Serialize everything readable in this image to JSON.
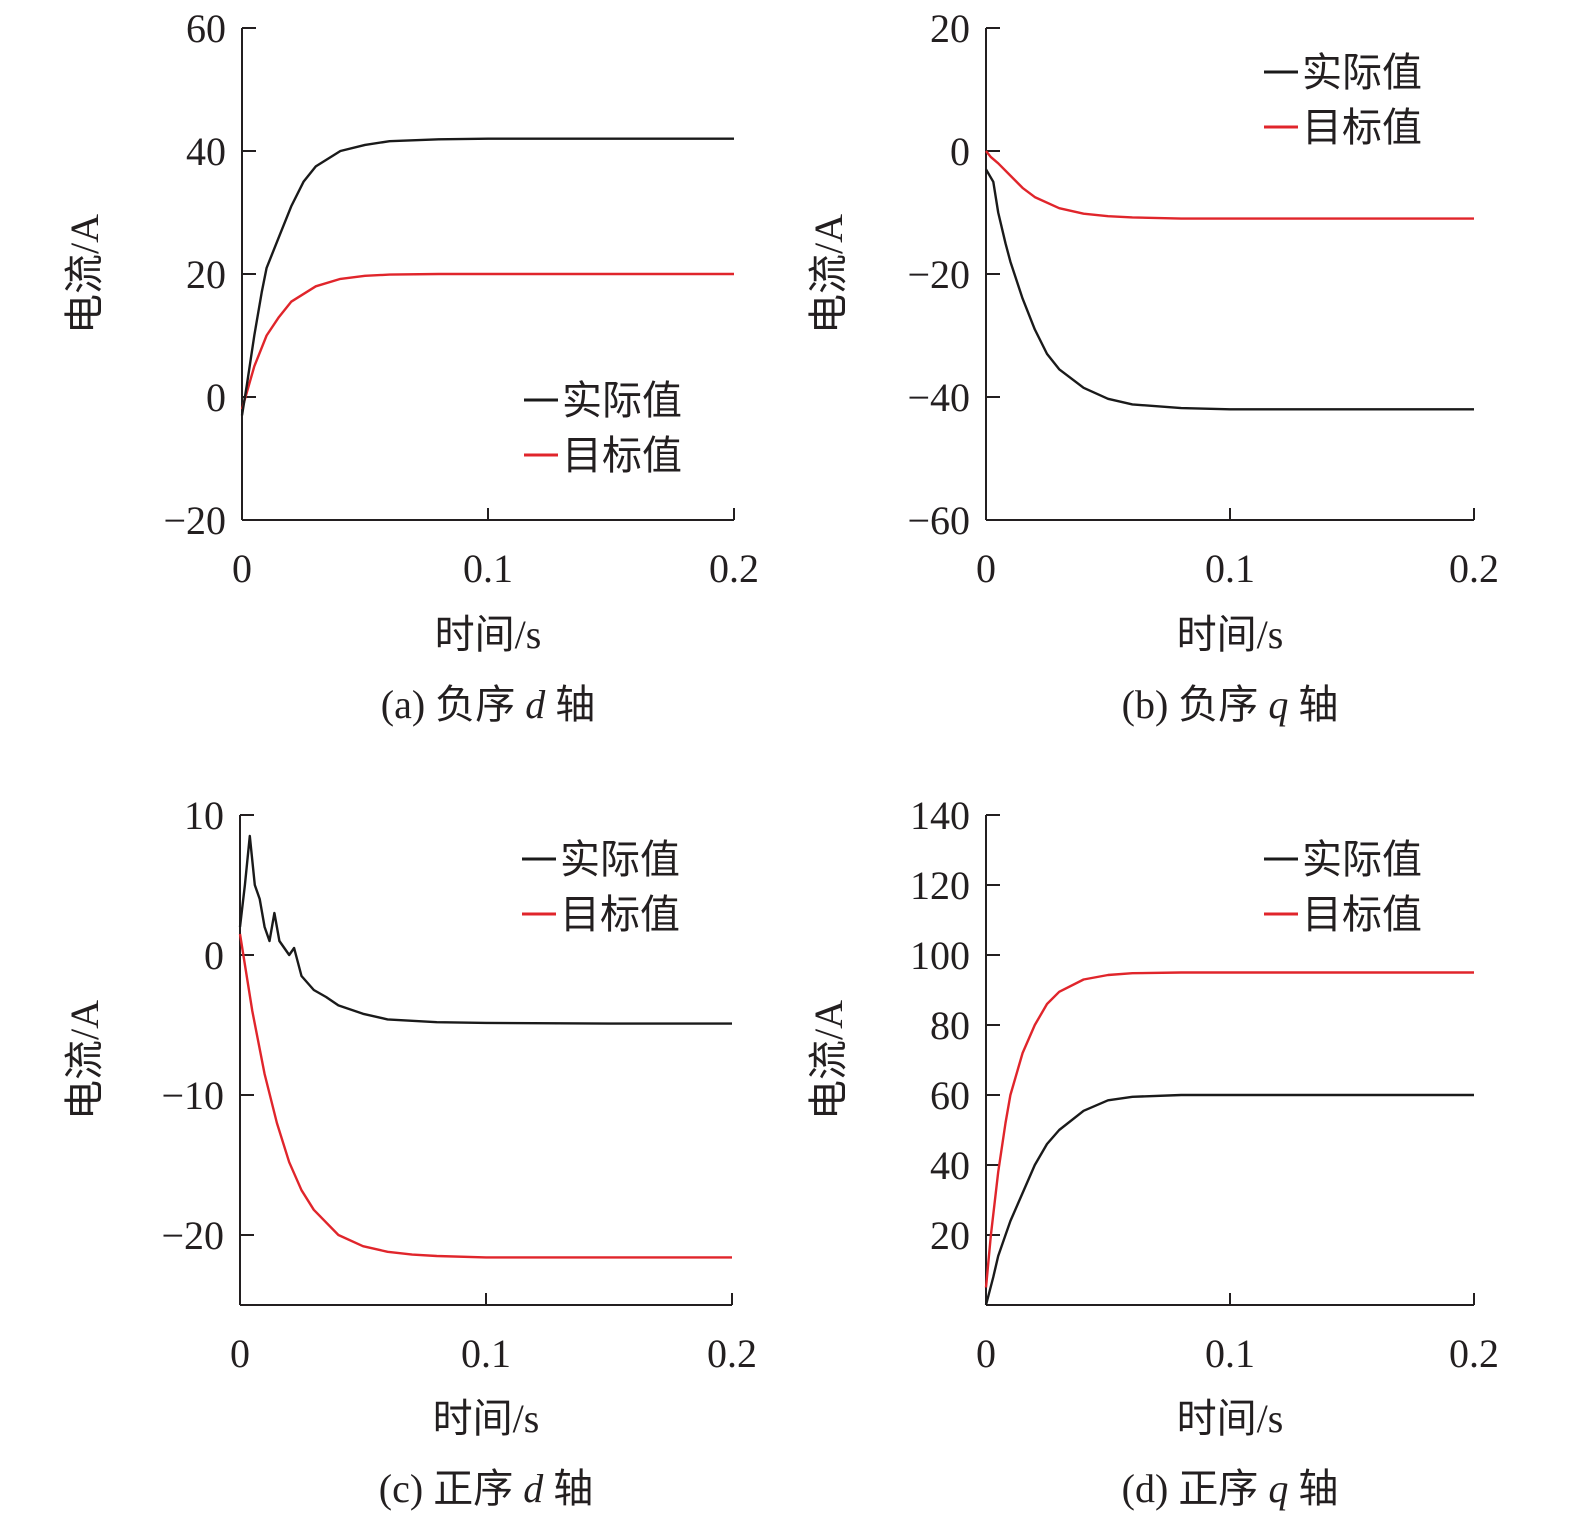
{
  "colors": {
    "actual": "#1a1a1a",
    "target": "#e0252b"
  },
  "chart_data": [
    {
      "type": "line",
      "caption": {
        "prefix": "(a) 负序 ",
        "var": "d",
        "suffix": " 轴"
      },
      "xlabel": "时间/s",
      "ylabel": "电流/A",
      "xlim": [
        0,
        0.2
      ],
      "ylim": [
        -20,
        60
      ],
      "xticks": [
        0,
        0.1,
        0.2
      ],
      "xtick_labels": [
        "0",
        "0.1",
        "0.2"
      ],
      "yticks": [
        -20,
        0,
        20,
        40,
        60
      ],
      "ytick_labels": [
        "−20",
        "0",
        "20",
        "40",
        "60"
      ],
      "legend_position": "bottom-right",
      "series": [
        {
          "name": "实际值",
          "key": "actual",
          "x": [
            0,
            0.002,
            0.005,
            0.008,
            0.01,
            0.015,
            0.02,
            0.025,
            0.03,
            0.04,
            0.05,
            0.06,
            0.08,
            0.1,
            0.15,
            0.2
          ],
          "values": [
            -3,
            2,
            10,
            17,
            21,
            26,
            31,
            35,
            37.5,
            40,
            41,
            41.6,
            41.9,
            42,
            42,
            42
          ]
        },
        {
          "name": "目标值",
          "key": "target",
          "x": [
            0,
            0.005,
            0.01,
            0.015,
            0.02,
            0.03,
            0.04,
            0.05,
            0.06,
            0.08,
            0.1,
            0.15,
            0.2
          ],
          "values": [
            -2,
            5,
            10,
            13,
            15.5,
            18,
            19.2,
            19.7,
            19.9,
            20,
            20,
            20,
            20
          ]
        }
      ]
    },
    {
      "type": "line",
      "caption": {
        "prefix": "(b) 负序 ",
        "var": "q",
        "suffix": " 轴"
      },
      "xlabel": "时间/s",
      "ylabel": "电流/A",
      "xlim": [
        0,
        0.2
      ],
      "ylim": [
        -60,
        20
      ],
      "xticks": [
        0,
        0.1,
        0.2
      ],
      "xtick_labels": [
        "0",
        "0.1",
        "0.2"
      ],
      "yticks": [
        -60,
        -40,
        -20,
        0,
        20
      ],
      "ytick_labels": [
        "−60",
        "−40",
        "−20",
        "0",
        "20"
      ],
      "legend_position": "top-right",
      "series": [
        {
          "name": "实际值",
          "key": "actual",
          "x": [
            0,
            0.003,
            0.005,
            0.008,
            0.01,
            0.015,
            0.02,
            0.025,
            0.03,
            0.04,
            0.05,
            0.06,
            0.08,
            0.1,
            0.15,
            0.2
          ],
          "values": [
            -3,
            -5,
            -10,
            -15,
            -18,
            -24,
            -29,
            -33,
            -35.5,
            -38.5,
            -40.3,
            -41.2,
            -41.8,
            -42,
            -42,
            -42
          ]
        },
        {
          "name": "目标值",
          "key": "target",
          "x": [
            0,
            0.002,
            0.005,
            0.01,
            0.015,
            0.02,
            0.03,
            0.04,
            0.05,
            0.06,
            0.08,
            0.1,
            0.15,
            0.2
          ],
          "values": [
            0,
            -1,
            -2,
            -4,
            -6,
            -7.5,
            -9.3,
            -10.2,
            -10.6,
            -10.8,
            -11,
            -11,
            -11,
            -11
          ]
        }
      ]
    },
    {
      "type": "line",
      "caption": {
        "prefix": "(c) 正序 ",
        "var": "d",
        "suffix": " 轴"
      },
      "xlabel": "时间/s",
      "ylabel": "电流/A",
      "xlim": [
        0,
        0.2
      ],
      "ylim": [
        -25,
        10
      ],
      "xticks": [
        0,
        0.1,
        0.2
      ],
      "xtick_labels": [
        "0",
        "0.1",
        "0.2"
      ],
      "yticks": [
        -20,
        -10,
        0,
        10
      ],
      "ytick_labels": [
        "−20",
        "−10",
        "0",
        "10"
      ],
      "legend_position": "top-right",
      "series": [
        {
          "name": "实际值",
          "key": "actual",
          "x": [
            0,
            0.002,
            0.004,
            0.006,
            0.008,
            0.01,
            0.012,
            0.014,
            0.016,
            0.02,
            0.022,
            0.025,
            0.03,
            0.035,
            0.04,
            0.05,
            0.06,
            0.08,
            0.1,
            0.15,
            0.2
          ],
          "values": [
            2,
            5,
            8.5,
            5,
            4,
            2,
            1,
            3,
            1,
            0,
            0.5,
            -1.5,
            -2.5,
            -3,
            -3.6,
            -4.2,
            -4.6,
            -4.8,
            -4.85,
            -4.9,
            -4.9
          ]
        },
        {
          "name": "目标值",
          "key": "target",
          "x": [
            0,
            0.005,
            0.01,
            0.015,
            0.02,
            0.025,
            0.03,
            0.04,
            0.05,
            0.06,
            0.07,
            0.08,
            0.1,
            0.12,
            0.15,
            0.2
          ],
          "values": [
            1.5,
            -4,
            -8.5,
            -12,
            -14.8,
            -16.8,
            -18.2,
            -20,
            -20.8,
            -21.2,
            -21.4,
            -21.5,
            -21.6,
            -21.6,
            -21.6,
            -21.6
          ]
        }
      ]
    },
    {
      "type": "line",
      "caption": {
        "prefix": "(d) 正序 ",
        "var": "q",
        "suffix": " 轴"
      },
      "xlabel": "时间/s",
      "ylabel": "电流/A",
      "xlim": [
        0,
        0.2
      ],
      "ylim": [
        0,
        140
      ],
      "xticks": [
        0,
        0.1,
        0.2
      ],
      "xtick_labels": [
        "0",
        "0.1",
        "0.2"
      ],
      "yticks": [
        20,
        40,
        60,
        80,
        100,
        120,
        140
      ],
      "ytick_labels": [
        "20",
        "40",
        "60",
        "80",
        "100",
        "120",
        "140"
      ],
      "legend_position": "top-right",
      "series": [
        {
          "name": "实际值",
          "key": "actual",
          "x": [
            0,
            0.003,
            0.005,
            0.008,
            0.01,
            0.015,
            0.02,
            0.025,
            0.03,
            0.04,
            0.05,
            0.06,
            0.08,
            0.1,
            0.15,
            0.2
          ],
          "values": [
            0,
            8,
            14,
            20,
            24,
            32,
            40,
            46,
            50,
            55.5,
            58.5,
            59.5,
            60,
            60,
            60,
            60
          ]
        },
        {
          "name": "目标值",
          "key": "target",
          "x": [
            0,
            0.002,
            0.005,
            0.008,
            0.01,
            0.015,
            0.02,
            0.025,
            0.03,
            0.04,
            0.05,
            0.06,
            0.08,
            0.1,
            0.15,
            0.2
          ],
          "values": [
            5,
            20,
            38,
            52,
            60,
            72,
            80,
            86,
            89.5,
            93,
            94.3,
            94.8,
            95,
            95,
            95,
            95
          ]
        }
      ]
    }
  ]
}
